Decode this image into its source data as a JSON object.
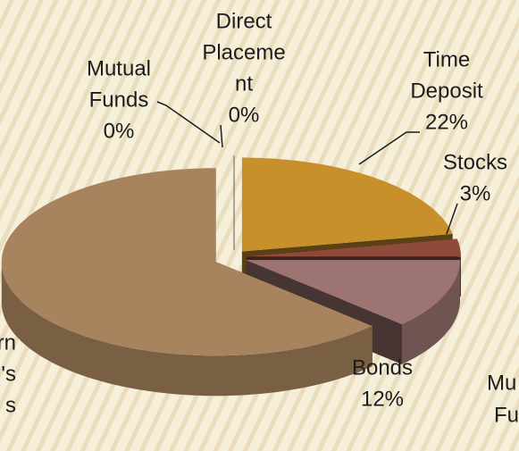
{
  "chart_data": {
    "type": "pie",
    "categories": [
      [
        "Mutual",
        "Funds"
      ],
      [
        "Direct",
        "Placeme",
        "nt"
      ],
      [
        "Time",
        "Deposit"
      ],
      [
        "Stocks"
      ],
      [
        "Bonds"
      ],
      [
        "rn",
        "'s",
        "s"
      ]
    ],
    "values": [
      0,
      0,
      22,
      3,
      12,
      63
    ],
    "value_labels": [
      "0%",
      "0%",
      "22%",
      "3%",
      "12%",
      null
    ],
    "colors": [
      "#b0906a",
      "#c9b89a",
      "#c8902a",
      "#8e4b3c",
      "#9c7572",
      "#a8845e"
    ],
    "annotations": [
      "Mu",
      "Fu"
    ]
  }
}
